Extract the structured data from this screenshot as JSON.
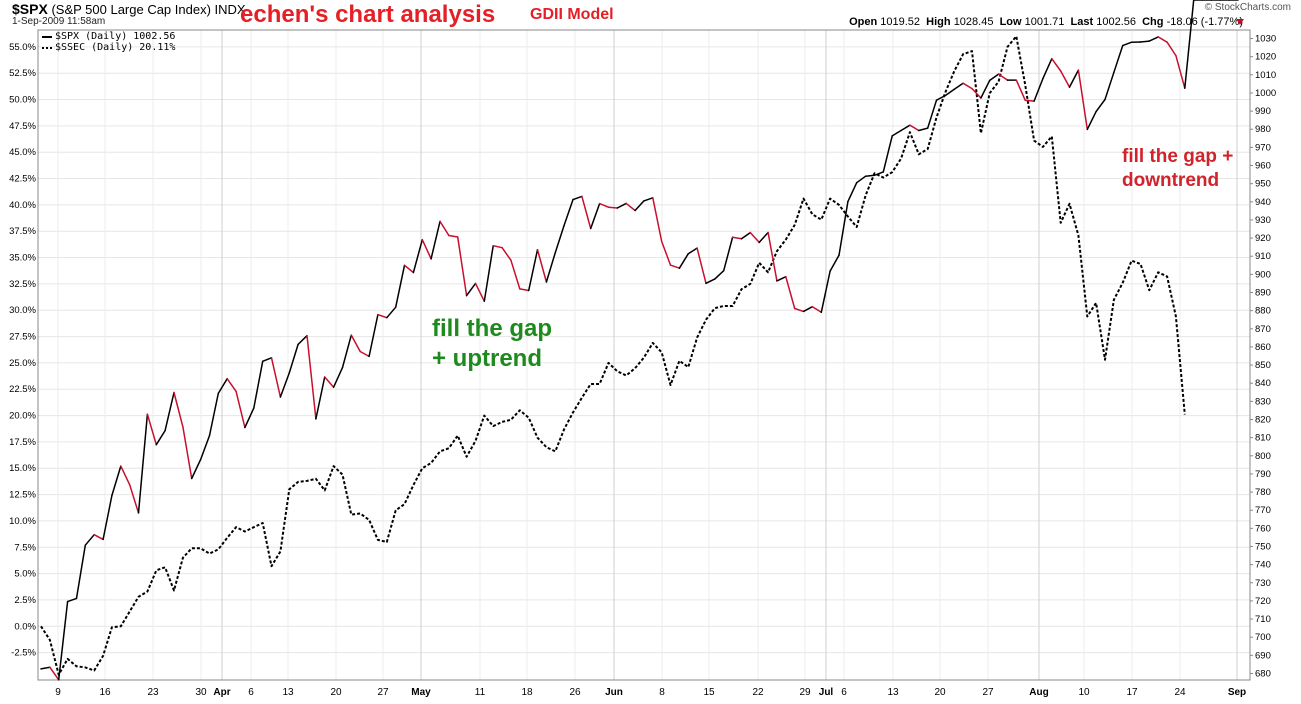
{
  "header": {
    "symbol": "$SPX",
    "symbol_desc": "(S&P 500 Large Cap Index)",
    "exchange": "INDX",
    "datetime": "1-Sep-2009 11:58am",
    "title": "echen's chart analysis",
    "model": "GDII Model",
    "brand": "© StockCharts.com",
    "quote": {
      "open_label": "Open",
      "open": "1019.52",
      "high_label": "High",
      "high": "1028.45",
      "low_label": "Low",
      "low": "1001.71",
      "last_label": "Last",
      "last": "1002.56",
      "chg_label": "Chg",
      "chg": "-18.06 (-1.77%)"
    }
  },
  "legend": [
    {
      "label": "$SPX (Daily) 1002.56",
      "style": "solid"
    },
    {
      "label": "$SSEC (Daily) 20.11%",
      "style": "dotted"
    }
  ],
  "annotations": [
    {
      "lines": [
        "fill the gap",
        "+ uptrend"
      ],
      "color": "#1e8a1e"
    },
    {
      "lines": [
        "fill the gap +",
        "downtrend"
      ],
      "color": "#d0232b"
    }
  ],
  "chart_data": {
    "type": "line",
    "x_tick_labels": [
      "9",
      "16",
      "23",
      "30",
      "Apr",
      "6",
      "13",
      "20",
      "27",
      "May",
      "11",
      "18",
      "26",
      "Jun",
      "8",
      "15",
      "22",
      "29",
      "Jul",
      "6",
      "13",
      "20",
      "27",
      "Aug",
      "10",
      "17",
      "24",
      "Sep"
    ],
    "y_left_ticks": [
      "-2.5%",
      "0.0%",
      "2.5%",
      "5.0%",
      "7.5%",
      "10.0%",
      "12.5%",
      "15.0%",
      "17.5%",
      "20.0%",
      "22.5%",
      "25.0%",
      "27.5%",
      "30.0%",
      "32.5%",
      "35.0%",
      "37.5%",
      "40.0%",
      "42.5%",
      "45.0%",
      "47.5%",
      "50.0%",
      "52.5%",
      "55.0%"
    ],
    "y_right_ticks": [
      "680",
      "690",
      "700",
      "710",
      "720",
      "730",
      "740",
      "750",
      "760",
      "770",
      "780",
      "790",
      "800",
      "810",
      "820",
      "830",
      "840",
      "850",
      "860",
      "870",
      "880",
      "890",
      "900",
      "910",
      "920",
      "930",
      "940",
      "950",
      "960",
      "970",
      "980",
      "990",
      "1000",
      "1010",
      "1020",
      "1030"
    ],
    "ylim_percent": [
      -5.1,
      56.6
    ],
    "ylim_price": [
      676.4,
      1034.7
    ],
    "grid": true,
    "legend_position": "top-left",
    "colors": {
      "up": "#000000",
      "down": "#c8102e"
    },
    "series": [
      {
        "name": "$SPX (Daily) 1002.56",
        "style": "solid",
        "x": [
          0,
          1,
          2,
          3,
          4,
          5,
          6,
          7,
          8,
          9,
          10,
          11,
          12,
          13,
          14,
          15,
          16,
          17,
          18,
          19,
          20,
          21,
          22,
          23,
          24,
          25,
          26,
          27,
          28,
          29,
          30,
          31,
          32,
          33,
          34,
          35,
          36,
          37,
          38,
          39,
          40,
          41,
          42,
          43,
          44,
          45,
          46,
          47,
          48,
          49,
          50,
          51,
          52,
          53,
          54,
          55,
          56,
          57,
          58,
          59,
          60,
          61,
          62,
          63,
          64,
          65,
          66,
          67,
          68,
          69,
          70,
          71,
          72,
          73,
          74,
          75,
          76,
          77,
          78,
          79,
          80,
          81,
          82,
          83,
          84,
          85,
          86,
          87,
          88,
          89,
          90,
          91,
          92,
          93,
          94,
          95,
          96,
          97,
          98,
          99,
          100,
          101,
          102,
          103,
          104,
          105,
          106,
          107,
          108,
          109,
          110,
          111,
          112,
          113,
          114,
          115,
          116,
          117,
          118,
          119,
          120,
          121,
          122,
          123,
          124,
          125,
          126,
          127,
          128,
          129,
          130,
          131,
          132,
          133,
          134,
          135
        ],
        "price": [
          682.5,
          683.4,
          676.5,
          719.6,
          721.4,
          750.7,
          756.5,
          753.9,
          778.1,
          794.3,
          784.0,
          768.5,
          822.9,
          806.1,
          813.9,
          834.9,
          815.9,
          787.5,
          797.9,
          811.1,
          834.4,
          842.5,
          835.5,
          815.6,
          826.3,
          852.1,
          854.0,
          832.4,
          845.7,
          861.4,
          866.2,
          820.3,
          843.4,
          837.8,
          848.6,
          866.5,
          857.5,
          854.8,
          877.8,
          876.1,
          881.9,
          905.0,
          901.0,
          919.1,
          908.6,
          929.2,
          921.4,
          920.6,
          888.3,
          895.0,
          885.2,
          915.8,
          914.7,
          907.8,
          892.0,
          891.1,
          913.6,
          895.8,
          912.0,
          927.0,
          941.2,
          943.0,
          925.3,
          939.0,
          937.0,
          936.6,
          939.1,
          935.2,
          940.5,
          942.2,
          918.1,
          905.1,
          903.4,
          911.4,
          914.5,
          895.1,
          897.5,
          902.0,
          920.5,
          919.6,
          923.0,
          917.6,
          923.1,
          896.4,
          898.7,
          881.2,
          879.6,
          882.2,
          879.1,
          901.8,
          910.5,
          940.1,
          950.5,
          954.1,
          954.6,
          956.5,
          976.3,
          979.3,
          982.2,
          979.3,
          980.6,
          996.0,
          998.6,
          1002.0,
          1005.4,
          1002.4,
          997.2,
          1006.9,
          1010.4,
          1007.1,
          1007.1,
          996.0,
          995.5,
          1007.9,
          1018.9,
          1012.1,
          1003.2,
          1012.6,
          979.9,
          989.7,
          996.4,
          1011.4,
          1026.1,
          1028.0,
          1028.1,
          1028.6,
          1030.9,
          1028.0,
          1020.6,
          1002.6
        ]
      },
      {
        "name": "$SSEC (Daily) 20.11%",
        "style": "dotted",
        "x": [
          0,
          1,
          2,
          3,
          4,
          5,
          6,
          7,
          8,
          9,
          10,
          11,
          12,
          13,
          14,
          15,
          16,
          17,
          18,
          19,
          20,
          21,
          22,
          23,
          24,
          25,
          26,
          27,
          28,
          29,
          30,
          31,
          32,
          33,
          34,
          35,
          36,
          37,
          38,
          39,
          40,
          41,
          42,
          43,
          44,
          45,
          46,
          47,
          48,
          49,
          50,
          51,
          52,
          53,
          54,
          55,
          56,
          57,
          58,
          59,
          60,
          61,
          62,
          63,
          64,
          65,
          66,
          67,
          68,
          69,
          70,
          71,
          72,
          73,
          74,
          75,
          76,
          77,
          78,
          79,
          80,
          81,
          82,
          83,
          84,
          85,
          86,
          87,
          88,
          89,
          90,
          91,
          92,
          93,
          94,
          95,
          96,
          97,
          98,
          99,
          100,
          101,
          102,
          103,
          104,
          105,
          106,
          107,
          108,
          109,
          110,
          111,
          112,
          113,
          114,
          115,
          116,
          117,
          118,
          119,
          120,
          121,
          122,
          123,
          124,
          125,
          126,
          127,
          128,
          129,
          130,
          131,
          132,
          133,
          134,
          135
        ],
        "percent": [
          0.0,
          -1.3,
          -4.6,
          -3.1,
          -3.8,
          -3.9,
          -4.2,
          -2.8,
          -0.1,
          0.0,
          1.4,
          2.8,
          3.3,
          5.3,
          5.6,
          3.4,
          6.5,
          7.4,
          7.4,
          6.9,
          7.3,
          8.4,
          9.4,
          9.0,
          9.4,
          9.8,
          5.7,
          7.1,
          13.0,
          13.7,
          13.8,
          14.0,
          12.9,
          15.2,
          14.4,
          10.6,
          10.7,
          10.1,
          8.2,
          8.0,
          11.0,
          11.6,
          13.4,
          15.0,
          15.5,
          16.6,
          16.9,
          18.1,
          16.1,
          17.6,
          20.0,
          19.0,
          19.4,
          19.6,
          20.5,
          19.8,
          17.9,
          17.0,
          16.6,
          18.7,
          20.3,
          21.7,
          23.0,
          23.0,
          25.0,
          24.2,
          23.8,
          24.5,
          25.5,
          26.9,
          26.0,
          22.9,
          25.2,
          24.6,
          27.4,
          29.1,
          30.2,
          30.4,
          30.4,
          32.0,
          32.5,
          34.5,
          33.6,
          35.6,
          36.7,
          38.1,
          40.6,
          39.1,
          38.6,
          40.6,
          40.0,
          38.9,
          37.9,
          40.9,
          43.0,
          42.6,
          43.1,
          44.4,
          46.9,
          44.8,
          45.3,
          48.3,
          50.7,
          52.7,
          54.3,
          54.6,
          46.8,
          50.6,
          51.7,
          55.0,
          56.0,
          51.4,
          46.1,
          45.5,
          46.5,
          38.3,
          40.1,
          37.1,
          29.4,
          30.7,
          25.3,
          31.0,
          32.6,
          34.7,
          34.4,
          31.9,
          33.6,
          33.2,
          29.4,
          20.1
        ]
      }
    ]
  }
}
